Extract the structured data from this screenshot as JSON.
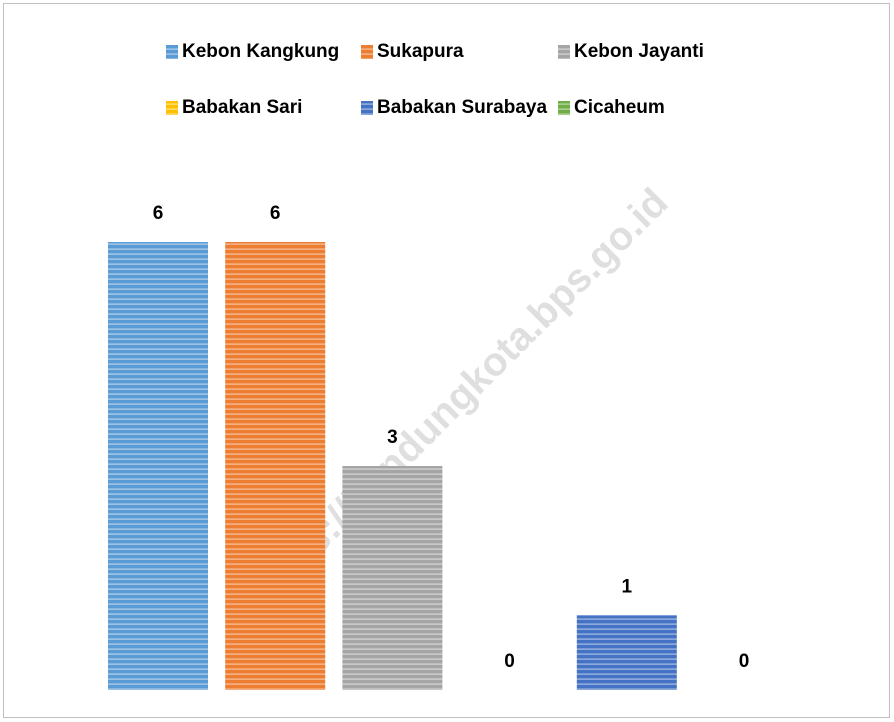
{
  "chart_data": {
    "type": "bar",
    "categories": [
      "Kebon Kangkung",
      "Sukapura",
      "Kebon Jayanti",
      "Babakan Sari",
      "Babakan Surabaya",
      "Cicaheum"
    ],
    "values": [
      6,
      6,
      3,
      0,
      1,
      0
    ],
    "colors": [
      "#5b9bd5",
      "#ed7d31",
      "#a5a5a5",
      "#ffc000",
      "#4472c4",
      "#70ad47"
    ],
    "ylim": [
      0,
      6
    ],
    "legend": "top",
    "watermark": "https://bandungkota.bps.go.id"
  }
}
